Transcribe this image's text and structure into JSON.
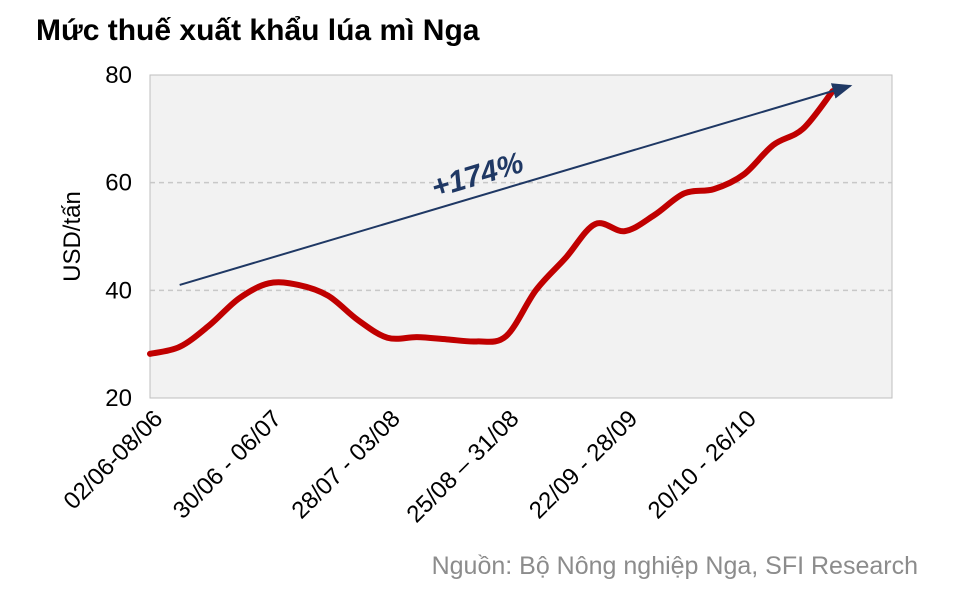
{
  "chart_data": {
    "type": "line",
    "title": "Mức thuế xuất khẩu lúa mì Nga",
    "ylabel": "USD/tấn",
    "ylim": [
      20,
      80
    ],
    "yticks": [
      20,
      40,
      60,
      80
    ],
    "grid": true,
    "x_tick_labels": [
      "02/06-08/06",
      "30/06 - 06/07",
      "28/07 - 03/08",
      "25/08 – 31/08",
      "22/09 - 28/09",
      "20/10 - 26/10"
    ],
    "x_tick_positions": [
      0,
      4,
      8,
      12,
      16,
      20
    ],
    "series": [
      {
        "color": "#c00000",
        "x": [
          0,
          1,
          2,
          3,
          4,
          5,
          6,
          7,
          8,
          9,
          10,
          11,
          12,
          13,
          14,
          15,
          16,
          17,
          18,
          19,
          20,
          21,
          22,
          23,
          24
        ],
        "values": [
          28.2,
          29.5,
          33.5,
          38.5,
          41.3,
          41.0,
          39.0,
          34.5,
          31.2,
          31.3,
          30.9,
          30.5,
          31.5,
          40.0,
          46.0,
          52.3,
          51.0,
          54.0,
          58.0,
          58.8,
          61.5,
          67.0,
          70.0,
          77.0,
          null
        ]
      }
    ],
    "annotation": {
      "text": "+174%",
      "arrow_from": [
        1,
        41.0
      ],
      "arrow_to": [
        23.6,
        78.0
      ],
      "color": "#1f3864"
    },
    "source": "Nguồn: Bộ Nông nghiệp Nga, SFI Research"
  }
}
